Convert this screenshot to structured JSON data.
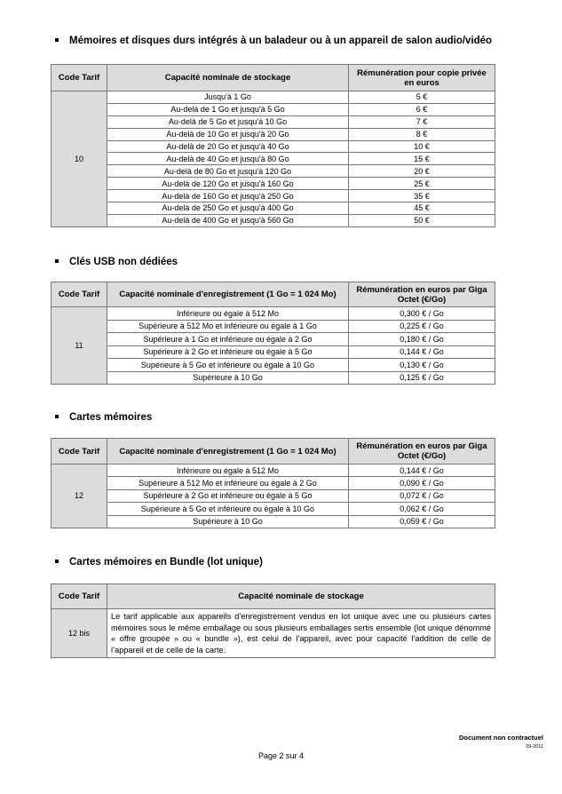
{
  "sections": [
    {
      "title": "Mémoires et disques durs intégrés à un baladeur ou à un appareil de salon audio/vidéo",
      "headers": [
        "Code Tarif",
        "Capacité nominale de stockage",
        "Rémunération pour copie privée en euros"
      ],
      "code": "10",
      "rows": [
        [
          "Jusqu'à 1 Go",
          "5 €"
        ],
        [
          "Au-delà de 1 Go et jusqu'à 5 Go",
          "6 €"
        ],
        [
          "Au-delà de 5 Go et jusqu'à 10 Go",
          "7 €"
        ],
        [
          "Au-delà de 10 Go et jusqu'à 20 Go",
          "8 €"
        ],
        [
          "Au-delà de 20 Go et jusqu'à 40 Go",
          "10 €"
        ],
        [
          "Au-delà de 40 Go et jusqu'à 80 Go",
          "15 €"
        ],
        [
          "Au-delà de 80 Go et jusqu'à 120 Go",
          "20 €"
        ],
        [
          "Au-delà de 120 Go et jusqu'à 160 Go",
          "25 €"
        ],
        [
          "Au-delà de 160 Go et jusqu'à 250 Go",
          "35 €"
        ],
        [
          "Au-delà de 250 Go et jusqu'à 400 Go",
          "45 €"
        ],
        [
          "Au-delà de 400 Go et jusqu'à 560 Go",
          "50 €"
        ]
      ]
    },
    {
      "title": "Clés USB non dédiées",
      "headers": [
        "Code Tarif",
        "Capacité nominale d'enregistrement (1 Go = 1 024 Mo)",
        "Rémunération en euros par Giga Octet (€/Go)"
      ],
      "code": "11",
      "rows": [
        [
          "Inférieure ou égale à 512 Mo",
          "0,300 € / Go"
        ],
        [
          "Supérieure à 512 Mo et inférieure ou égale à 1 Go",
          "0,225 € / Go"
        ],
        [
          "Supérieure à 1 Go et inférieure ou égale à 2 Go",
          "0,180 € / Go"
        ],
        [
          "Supérieure à 2 Go et inférieure ou égale à 5 Go",
          "0,144 € / Go"
        ],
        [
          "Supérieure à 5 Go et inférieure ou égale à 10 Go",
          "0,130 € / Go"
        ],
        [
          "Supérieure à 10 Go",
          "0,125 € / Go"
        ]
      ]
    },
    {
      "title": "Cartes mémoires",
      "headers": [
        "Code Tarif",
        "Capacité nominale d'enregistrement (1 Go = 1 024 Mo)",
        "Rémunération en euros par Giga Octet (€/Go)"
      ],
      "code": "12",
      "rows": [
        [
          "Inférieure ou égale à 512 Mo",
          "0,144 € / Go"
        ],
        [
          "Supérieure à 512 Mo et inférieure ou égale à 2 Go",
          "0,090 € / Go"
        ],
        [
          "Supérieure à 2 Go et inférieure ou égale à 5 Go",
          "0,072 € / Go"
        ],
        [
          "Supérieure à 5 Go et inférieure ou égale à 10 Go",
          "0,062 € / Go"
        ],
        [
          "Supérieure à 10 Go",
          "0,059 € / Go"
        ]
      ]
    },
    {
      "title": "Cartes mémoires en Bundle (lot unique)",
      "headers": [
        "Code Tarif",
        "Capacité nominale de stockage"
      ],
      "code": "12 bis",
      "text": "Le tarif applicable aux appareils d’enregistrement vendus en lot unique avec une ou plusieurs cartes mémoires sous le même emballage ou sous plusieurs emballages sertis ensemble (lot unique dénommé « offre groupée » ou « bundle »), est celui de l’appareil, avec pour capacité l’addition de celle de l’appareil et de celle de la carte."
    }
  ],
  "footer": {
    "disclaimer": "Document non contractuel",
    "date": "09-2011",
    "page": "Page 2 sur 4"
  }
}
